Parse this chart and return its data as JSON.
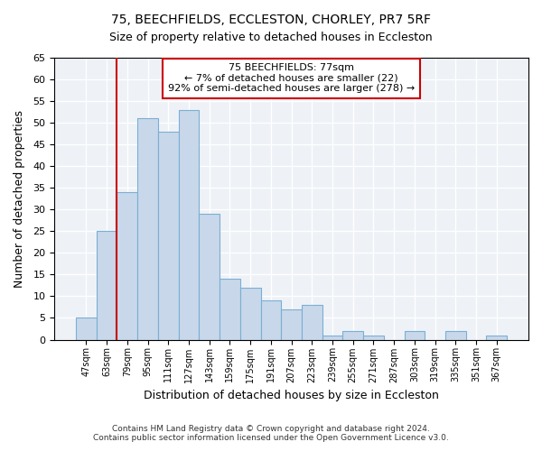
{
  "title1": "75, BEECHFIELDS, ECCLESTON, CHORLEY, PR7 5RF",
  "title2": "Size of property relative to detached houses in Eccleston",
  "xlabel": "Distribution of detached houses by size in Eccleston",
  "ylabel": "Number of detached properties",
  "bar_labels": [
    "47sqm",
    "63sqm",
    "79sqm",
    "95sqm",
    "111sqm",
    "127sqm",
    "143sqm",
    "159sqm",
    "175sqm",
    "191sqm",
    "207sqm",
    "223sqm",
    "239sqm",
    "255sqm",
    "271sqm",
    "287sqm",
    "303sqm",
    "319sqm",
    "335sqm",
    "351sqm",
    "367sqm"
  ],
  "bar_values": [
    5,
    25,
    34,
    51,
    48,
    53,
    29,
    14,
    12,
    9,
    7,
    8,
    1,
    2,
    1,
    0,
    2,
    0,
    2,
    0,
    1
  ],
  "bar_color": "#c8d8ea",
  "bar_edge_color": "#7aafd4",
  "annotation_line1": "75 BEECHFIELDS: 77sqm",
  "annotation_line2": "← 7% of detached houses are smaller (22)",
  "annotation_line3": "92% of semi-detached houses are larger (278) →",
  "annotation_box_edge_color": "#cc0000",
  "vline_color": "#cc0000",
  "vline_x_index": 2,
  "ylim": [
    0,
    65
  ],
  "yticks": [
    0,
    5,
    10,
    15,
    20,
    25,
    30,
    35,
    40,
    45,
    50,
    55,
    60,
    65
  ],
  "footer1": "Contains HM Land Registry data © Crown copyright and database right 2024.",
  "footer2": "Contains public sector information licensed under the Open Government Licence v3.0.",
  "bg_color": "#ffffff",
  "plot_bg_color": "#eef2f7"
}
